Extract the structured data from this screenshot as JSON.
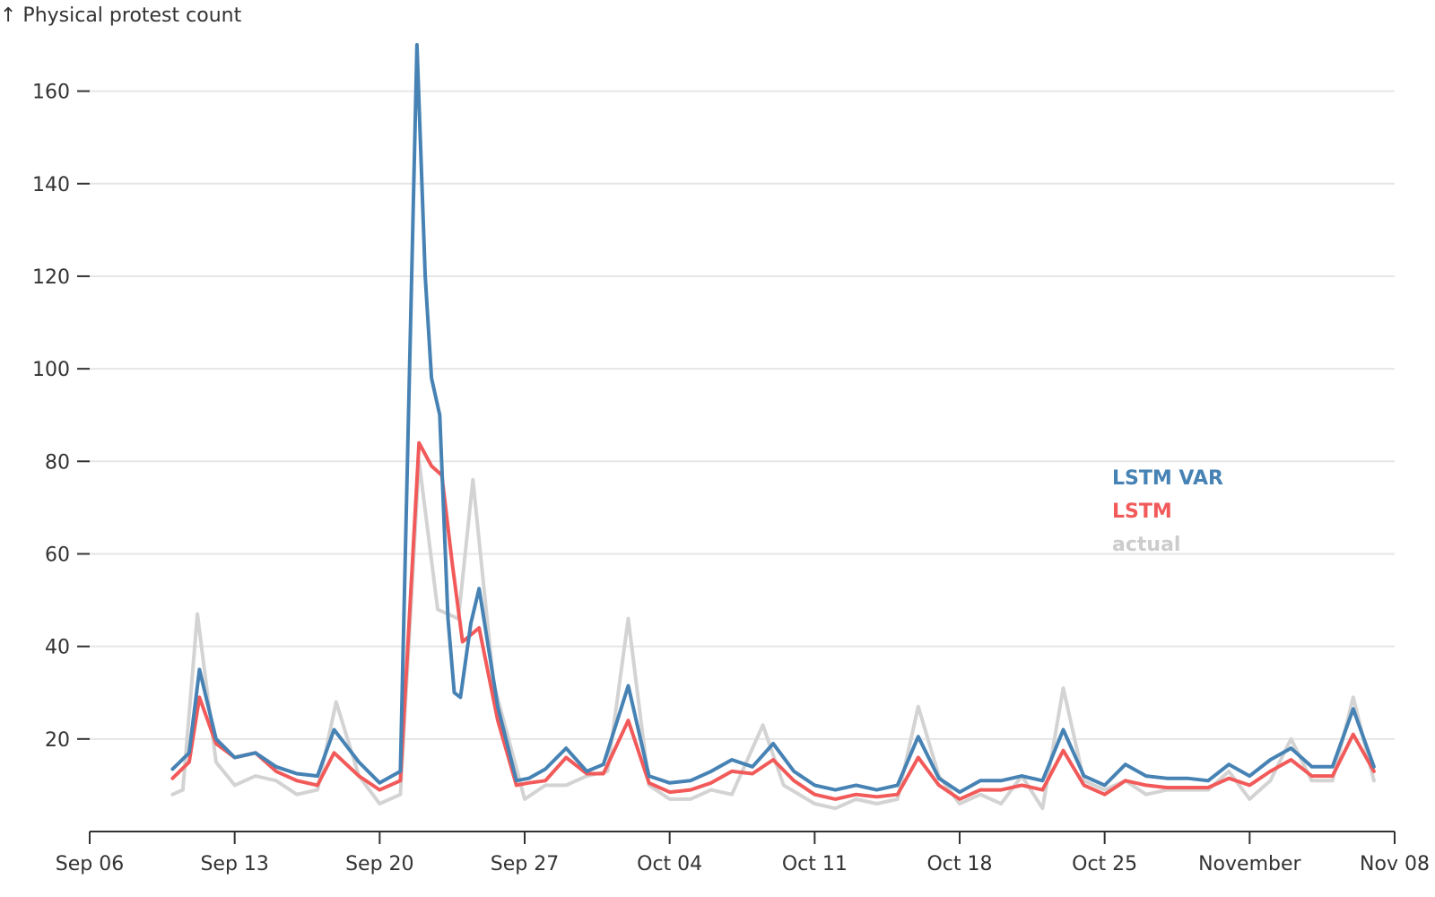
{
  "chart_data": {
    "type": "line",
    "ylabel": "↑ Physical protest count",
    "x_ticks": [
      {
        "label": "Sep 06",
        "day": 0
      },
      {
        "label": "Sep 13",
        "day": 7
      },
      {
        "label": "Sep 20",
        "day": 14
      },
      {
        "label": "Sep 27",
        "day": 21
      },
      {
        "label": "Oct 04",
        "day": 28
      },
      {
        "label": "Oct 11",
        "day": 35
      },
      {
        "label": "Oct 18",
        "day": 42
      },
      {
        "label": "Oct 25",
        "day": 49
      },
      {
        "label": "November",
        "day": 56
      },
      {
        "label": "Nov 08",
        "day": 63
      }
    ],
    "xlim_days": [
      0,
      63
    ],
    "ylim": [
      0,
      170
    ],
    "y_ticks": [
      20,
      40,
      60,
      80,
      100,
      120,
      140,
      160
    ],
    "grid": true,
    "legend_position": "right",
    "series": [
      {
        "name": "actual",
        "color": "#d3d3d3",
        "points": [
          [
            4,
            8
          ],
          [
            4.5,
            9
          ],
          [
            5.2,
            47
          ],
          [
            6.1,
            15
          ],
          [
            7,
            10
          ],
          [
            8,
            12
          ],
          [
            9,
            11
          ],
          [
            10,
            8
          ],
          [
            11,
            9
          ],
          [
            11.9,
            28
          ],
          [
            13,
            12
          ],
          [
            14,
            6
          ],
          [
            15,
            8
          ],
          [
            15.9,
            80
          ],
          [
            16.8,
            48
          ],
          [
            17.8,
            46
          ],
          [
            18.5,
            76
          ],
          [
            19.5,
            32
          ],
          [
            21,
            7
          ],
          [
            22,
            10
          ],
          [
            23,
            10
          ],
          [
            24,
            12
          ],
          [
            25,
            13
          ],
          [
            26,
            46
          ],
          [
            27,
            10
          ],
          [
            28,
            7
          ],
          [
            29,
            7
          ],
          [
            30,
            9
          ],
          [
            31,
            8
          ],
          [
            32.5,
            23
          ],
          [
            33.5,
            10
          ],
          [
            35,
            6
          ],
          [
            36,
            5
          ],
          [
            37,
            7
          ],
          [
            38,
            6
          ],
          [
            39,
            7
          ],
          [
            40,
            27
          ],
          [
            41,
            12
          ],
          [
            42,
            6
          ],
          [
            43,
            8
          ],
          [
            44,
            6
          ],
          [
            45,
            12
          ],
          [
            46,
            5
          ],
          [
            47,
            31
          ],
          [
            48,
            11
          ],
          [
            49,
            9
          ],
          [
            50,
            11
          ],
          [
            51,
            8
          ],
          [
            52,
            9
          ],
          [
            53,
            9
          ],
          [
            54,
            9
          ],
          [
            55,
            13
          ],
          [
            56,
            7
          ],
          [
            57,
            11
          ],
          [
            58,
            20
          ],
          [
            59,
            11
          ],
          [
            60,
            11
          ],
          [
            61,
            29
          ],
          [
            62,
            11
          ]
        ]
      },
      {
        "name": "LSTM",
        "color": "#f25a5a",
        "points": [
          [
            4,
            11.5
          ],
          [
            4.8,
            15
          ],
          [
            5.3,
            29
          ],
          [
            6.1,
            19
          ],
          [
            7,
            16
          ],
          [
            8,
            17
          ],
          [
            9,
            13
          ],
          [
            10,
            11
          ],
          [
            11,
            10
          ],
          [
            11.8,
            17
          ],
          [
            13,
            12
          ],
          [
            14,
            9
          ],
          [
            15,
            11
          ],
          [
            15.9,
            84
          ],
          [
            16.5,
            79
          ],
          [
            17,
            77
          ],
          [
            17.5,
            58
          ],
          [
            18,
            41
          ],
          [
            18.8,
            44
          ],
          [
            19.7,
            24
          ],
          [
            20.6,
            10
          ],
          [
            21.2,
            10.5
          ],
          [
            22,
            11
          ],
          [
            23,
            16
          ],
          [
            24,
            12.5
          ],
          [
            24.8,
            12.5
          ],
          [
            26,
            24
          ],
          [
            27,
            10.5
          ],
          [
            28,
            8.5
          ],
          [
            29,
            9
          ],
          [
            30,
            10.5
          ],
          [
            31,
            13
          ],
          [
            32,
            12.5
          ],
          [
            33,
            15.5
          ],
          [
            34,
            11
          ],
          [
            35,
            8
          ],
          [
            36,
            7
          ],
          [
            37,
            8
          ],
          [
            38,
            7.5
          ],
          [
            39,
            8
          ],
          [
            40,
            16
          ],
          [
            41,
            10
          ],
          [
            42,
            7
          ],
          [
            43,
            9
          ],
          [
            44,
            9
          ],
          [
            45,
            10
          ],
          [
            46,
            9
          ],
          [
            47,
            17.5
          ],
          [
            48,
            10
          ],
          [
            49,
            8
          ],
          [
            50,
            11
          ],
          [
            51,
            10
          ],
          [
            52,
            9.5
          ],
          [
            53,
            9.5
          ],
          [
            54,
            9.5
          ],
          [
            55,
            11.5
          ],
          [
            56,
            10
          ],
          [
            57,
            13
          ],
          [
            58,
            15.5
          ],
          [
            59,
            12
          ],
          [
            60,
            12
          ],
          [
            61,
            21
          ],
          [
            62,
            13
          ]
        ]
      },
      {
        "name": "LSTM VAR",
        "color": "#4682b4",
        "points": [
          [
            4,
            13.5
          ],
          [
            4.8,
            17
          ],
          [
            5.3,
            35
          ],
          [
            6.1,
            20
          ],
          [
            7,
            16
          ],
          [
            8,
            17
          ],
          [
            9,
            14
          ],
          [
            10,
            12.5
          ],
          [
            11,
            12
          ],
          [
            11.8,
            22
          ],
          [
            13,
            15
          ],
          [
            14,
            10.5
          ],
          [
            15,
            13
          ],
          [
            15.8,
            170
          ],
          [
            16.2,
            120
          ],
          [
            16.5,
            98
          ],
          [
            16.9,
            90
          ],
          [
            17.3,
            46
          ],
          [
            17.6,
            30
          ],
          [
            17.9,
            29
          ],
          [
            18.4,
            45
          ],
          [
            18.8,
            52.5
          ],
          [
            19.7,
            27
          ],
          [
            20.6,
            11
          ],
          [
            21.2,
            11.5
          ],
          [
            22,
            13.5
          ],
          [
            23,
            18
          ],
          [
            24,
            13
          ],
          [
            24.8,
            14.5
          ],
          [
            26,
            31.5
          ],
          [
            27,
            12
          ],
          [
            28,
            10.5
          ],
          [
            29,
            11
          ],
          [
            30,
            13
          ],
          [
            31,
            15.5
          ],
          [
            32,
            14
          ],
          [
            33,
            19
          ],
          [
            34,
            13
          ],
          [
            35,
            10
          ],
          [
            36,
            9
          ],
          [
            37,
            10
          ],
          [
            38,
            9
          ],
          [
            39,
            10
          ],
          [
            40,
            20.5
          ],
          [
            41,
            11.5
          ],
          [
            42,
            8.5
          ],
          [
            43,
            11
          ],
          [
            44,
            11
          ],
          [
            45,
            12
          ],
          [
            46,
            11
          ],
          [
            47,
            22
          ],
          [
            48,
            12
          ],
          [
            49,
            10
          ],
          [
            50,
            14.5
          ],
          [
            51,
            12
          ],
          [
            52,
            11.5
          ],
          [
            53,
            11.5
          ],
          [
            54,
            11
          ],
          [
            55,
            14.5
          ],
          [
            56,
            12
          ],
          [
            57,
            15.5
          ],
          [
            58,
            18
          ],
          [
            59,
            14
          ],
          [
            60,
            14
          ],
          [
            61,
            26.5
          ],
          [
            62,
            14
          ]
        ]
      }
    ],
    "legend": [
      {
        "name": "LSTM VAR",
        "color": "#4682b4"
      },
      {
        "name": "LSTM",
        "color": "#f25a5a"
      },
      {
        "name": "actual",
        "color": "#cccccc"
      }
    ]
  }
}
